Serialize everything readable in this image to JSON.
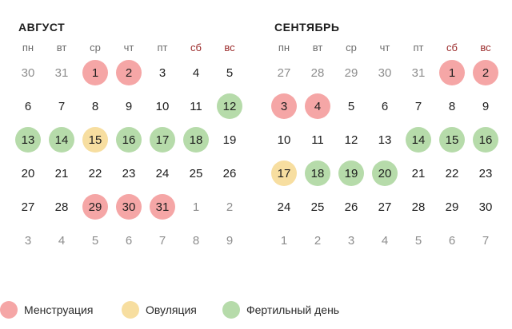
{
  "weekdays": [
    {
      "label": "пн",
      "weekend": false
    },
    {
      "label": "вт",
      "weekend": false
    },
    {
      "label": "ср",
      "weekend": false
    },
    {
      "label": "чт",
      "weekend": false
    },
    {
      "label": "пт",
      "weekend": false
    },
    {
      "label": "сб",
      "weekend": true
    },
    {
      "label": "вс",
      "weekend": true
    }
  ],
  "colors": {
    "menstruation": "#f5a6a6",
    "ovulation": "#f7dea0",
    "fertile": "#b6dbaa",
    "weekend_text": "#9b2a2a"
  },
  "months": [
    {
      "title": "АВГУСТ",
      "weeks": [
        [
          {
            "d": "30",
            "o": true
          },
          {
            "d": "31",
            "o": true
          },
          {
            "d": "1",
            "s": "menstruation"
          },
          {
            "d": "2",
            "s": "menstruation"
          },
          {
            "d": "3"
          },
          {
            "d": "4"
          },
          {
            "d": "5"
          }
        ],
        [
          {
            "d": "6"
          },
          {
            "d": "7"
          },
          {
            "d": "8"
          },
          {
            "d": "9"
          },
          {
            "d": "10"
          },
          {
            "d": "11"
          },
          {
            "d": "12",
            "s": "fertile"
          }
        ],
        [
          {
            "d": "13",
            "s": "fertile"
          },
          {
            "d": "14",
            "s": "fertile"
          },
          {
            "d": "15",
            "s": "ovulation"
          },
          {
            "d": "16",
            "s": "fertile"
          },
          {
            "d": "17",
            "s": "fertile"
          },
          {
            "d": "18",
            "s": "fertile"
          },
          {
            "d": "19"
          }
        ],
        [
          {
            "d": "20"
          },
          {
            "d": "21"
          },
          {
            "d": "22"
          },
          {
            "d": "23"
          },
          {
            "d": "24"
          },
          {
            "d": "25"
          },
          {
            "d": "26"
          }
        ],
        [
          {
            "d": "27"
          },
          {
            "d": "28"
          },
          {
            "d": "29",
            "s": "menstruation"
          },
          {
            "d": "30",
            "s": "menstruation"
          },
          {
            "d": "31",
            "s": "menstruation"
          },
          {
            "d": "1",
            "o": true
          },
          {
            "d": "2",
            "o": true
          }
        ],
        [
          {
            "d": "3",
            "o": true
          },
          {
            "d": "4",
            "o": true
          },
          {
            "d": "5",
            "o": true
          },
          {
            "d": "6",
            "o": true
          },
          {
            "d": "7",
            "o": true
          },
          {
            "d": "8",
            "o": true
          },
          {
            "d": "9",
            "o": true
          }
        ]
      ]
    },
    {
      "title": "СЕНТЯБРЬ",
      "weeks": [
        [
          {
            "d": "27",
            "o": true
          },
          {
            "d": "28",
            "o": true
          },
          {
            "d": "29",
            "o": true
          },
          {
            "d": "30",
            "o": true
          },
          {
            "d": "31",
            "o": true
          },
          {
            "d": "1",
            "s": "menstruation"
          },
          {
            "d": "2",
            "s": "menstruation"
          }
        ],
        [
          {
            "d": "3",
            "s": "menstruation"
          },
          {
            "d": "4",
            "s": "menstruation"
          },
          {
            "d": "5"
          },
          {
            "d": "6"
          },
          {
            "d": "7"
          },
          {
            "d": "8"
          },
          {
            "d": "9"
          }
        ],
        [
          {
            "d": "10"
          },
          {
            "d": "11"
          },
          {
            "d": "12"
          },
          {
            "d": "13"
          },
          {
            "d": "14",
            "s": "fertile"
          },
          {
            "d": "15",
            "s": "fertile"
          },
          {
            "d": "16",
            "s": "fertile"
          }
        ],
        [
          {
            "d": "17",
            "s": "ovulation"
          },
          {
            "d": "18",
            "s": "fertile"
          },
          {
            "d": "19",
            "s": "fertile"
          },
          {
            "d": "20",
            "s": "fertile"
          },
          {
            "d": "21"
          },
          {
            "d": "22"
          },
          {
            "d": "23"
          }
        ],
        [
          {
            "d": "24"
          },
          {
            "d": "25"
          },
          {
            "d": "26"
          },
          {
            "d": "27"
          },
          {
            "d": "28"
          },
          {
            "d": "29"
          },
          {
            "d": "30"
          }
        ],
        [
          {
            "d": "1",
            "o": true
          },
          {
            "d": "2",
            "o": true
          },
          {
            "d": "3",
            "o": true
          },
          {
            "d": "4",
            "o": true
          },
          {
            "d": "5",
            "o": true
          },
          {
            "d": "6",
            "o": true
          },
          {
            "d": "7",
            "o": true
          }
        ]
      ]
    }
  ],
  "legend": [
    {
      "key": "menstruation",
      "label": "Менструация"
    },
    {
      "key": "ovulation",
      "label": "Овуляция"
    },
    {
      "key": "fertile",
      "label": "Фертильный день"
    }
  ]
}
